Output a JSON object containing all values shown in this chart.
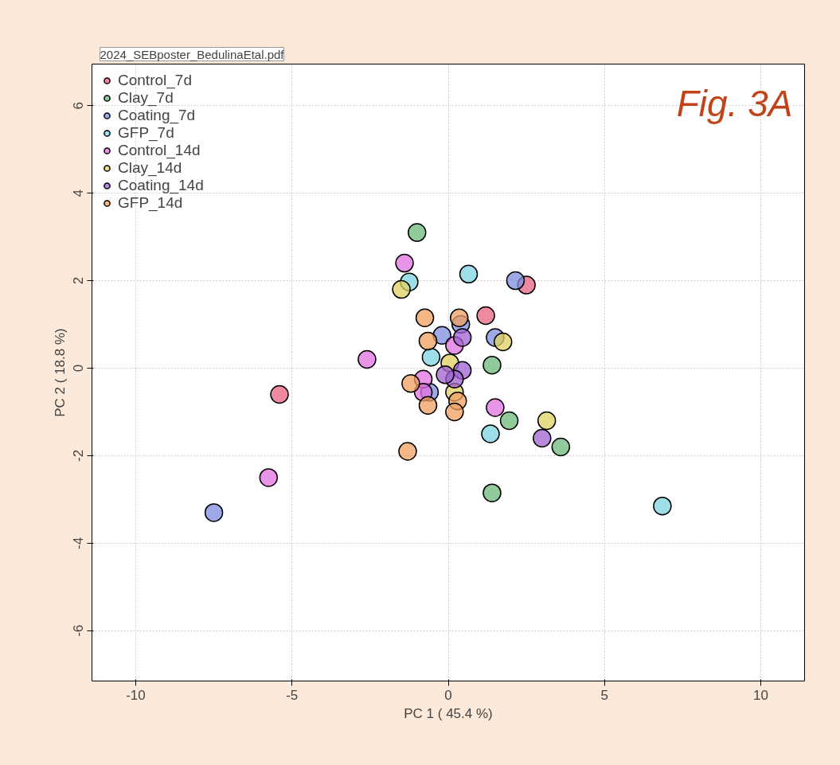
{
  "chart_data": {
    "type": "scatter",
    "xlabel": "PC 1 ( 45.4 %)",
    "ylabel": "PC 2 ( 18.8 %)",
    "annotations": [
      "2024_SEBposter_BedulinaEtal.pdf",
      "Fig. 3A"
    ],
    "xlim": [
      -11.4,
      11.4
    ],
    "ylim": [
      -7.15,
      6.95
    ],
    "xticks": [
      -10,
      -5,
      0,
      5,
      10
    ],
    "yticks": [
      -6,
      -4,
      -2,
      0,
      2,
      4,
      6
    ],
    "grid": true,
    "legend": "top left",
    "marker": "circle",
    "series": [
      {
        "name": "Control_7d",
        "color": "#e8637f",
        "x": [
          2.5,
          1.2,
          -5.4
        ],
        "values": [
          1.9,
          1.2,
          -0.6
        ]
      },
      {
        "name": "Clay_7d",
        "color": "#6cb87a",
        "x": [
          -1.0,
          1.4,
          1.95,
          3.6,
          1.4
        ],
        "values": [
          3.1,
          0.07,
          -1.2,
          -1.8,
          -2.85
        ]
      },
      {
        "name": "Coating_7d",
        "color": "#7d8ee0",
        "x": [
          -7.5,
          2.15,
          1.5,
          0.4,
          -0.2,
          -0.6
        ],
        "values": [
          -3.3,
          2.0,
          0.7,
          1.0,
          0.75,
          -0.55
        ]
      },
      {
        "name": "GFP_7d",
        "color": "#7dd3e0",
        "x": [
          6.85,
          0.65,
          -0.55,
          1.35,
          -1.25
        ],
        "values": [
          -3.15,
          2.15,
          0.25,
          -1.5,
          1.97
        ]
      },
      {
        "name": "Control_14d",
        "color": "#e070e0",
        "x": [
          -1.4,
          -2.6,
          -5.75,
          1.5,
          0.2,
          -0.8,
          -0.8
        ],
        "values": [
          2.4,
          0.2,
          -2.5,
          -0.9,
          0.52,
          -0.25,
          -0.55
        ]
      },
      {
        "name": "Clay_14d",
        "color": "#e0d060",
        "x": [
          -1.5,
          1.75,
          3.15,
          0.05,
          0.2
        ],
        "values": [
          1.8,
          0.6,
          -1.2,
          0.12,
          -0.55
        ]
      },
      {
        "name": "Coating_14d",
        "color": "#a060d0",
        "x": [
          3.0,
          0.45,
          0.2,
          -0.1,
          0.45
        ],
        "values": [
          -1.6,
          -0.05,
          -0.25,
          -0.15,
          0.7
        ]
      },
      {
        "name": "GFP_14d",
        "color": "#f0a060",
        "x": [
          -0.75,
          0.35,
          -0.65,
          -1.2,
          -1.3,
          0.3,
          0.2,
          -0.65
        ],
        "values": [
          1.15,
          1.15,
          0.62,
          -0.35,
          -1.9,
          -0.75,
          -1.0,
          -0.85
        ]
      }
    ]
  }
}
